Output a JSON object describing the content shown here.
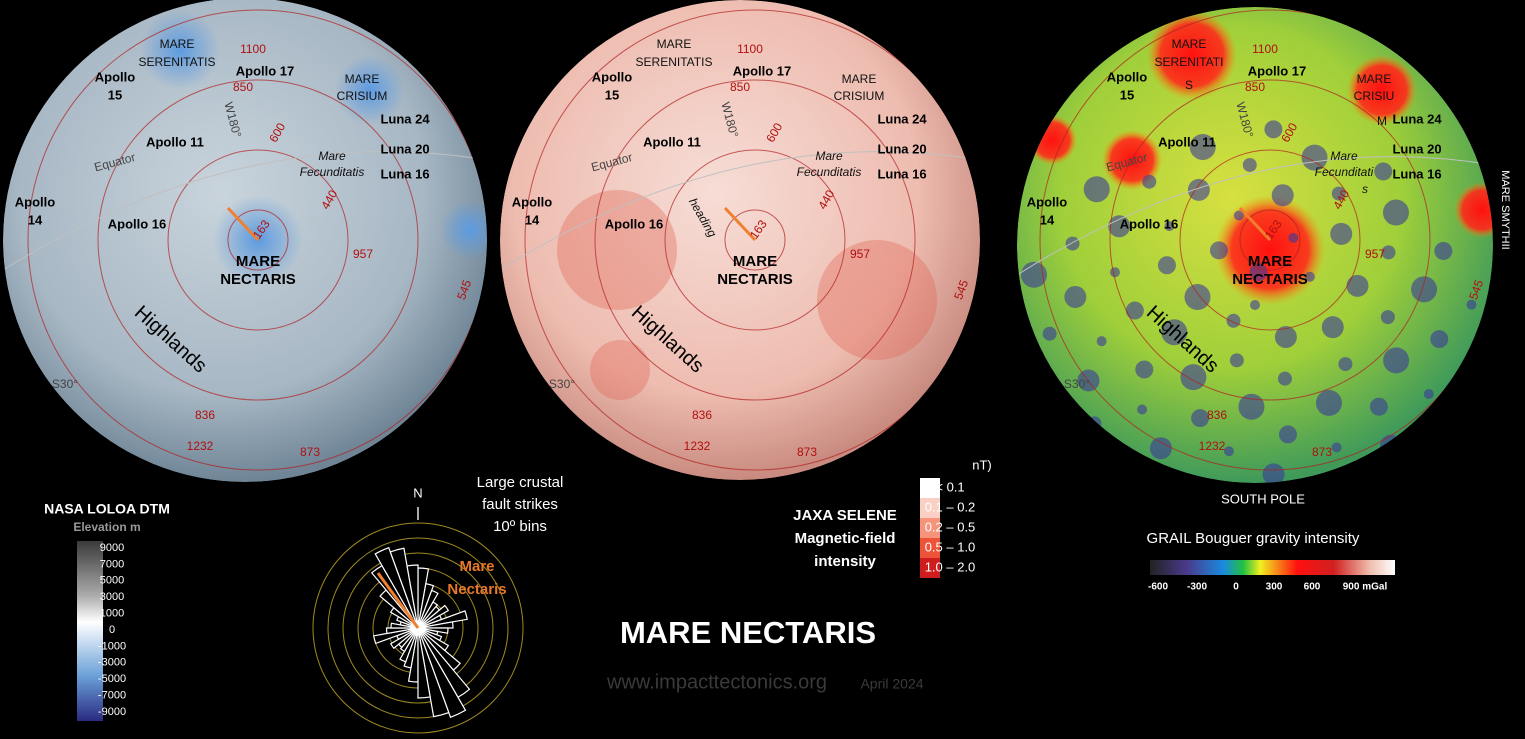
{
  "globes": [
    {
      "labels": [
        "MARE",
        "SERENITATIS",
        "Apollo  17",
        "Apollo",
        "15",
        "1100",
        "850",
        "MARE",
        "CRISIUM",
        "Luna 24",
        "W180°",
        "600",
        "Apollo 11",
        "Equator",
        "Mare",
        "Fecunditatis",
        "Luna 20",
        "Luna 16",
        "Apollo",
        "14",
        "Apollo 16",
        "163",
        "440",
        "MARE",
        "NECTARIS",
        "957",
        "545",
        "Highlands",
        "S30°",
        "836",
        "1232",
        "873"
      ],
      "extras": []
    },
    {
      "labels": [
        "MARE",
        "SERENITATIS",
        "Apollo  17",
        "Apollo",
        "15",
        "1100",
        "850",
        "MARE",
        "CRISIUM",
        "Luna 24",
        "W180°",
        "600",
        "Apollo 11",
        "Equator",
        "Mare",
        "Fecunditatis",
        "Luna 20",
        "Luna 16",
        "Apollo",
        "14",
        "Apollo 16",
        "163",
        "440",
        "MARE",
        "NECTARIS",
        "957",
        "545",
        "Highlands",
        "S30°",
        "836",
        "1232",
        "873"
      ],
      "extras": [
        "heading"
      ]
    },
    {
      "labels": [
        "MARE",
        "SERENITATI",
        "Apollo  17",
        "Apollo",
        "15",
        "1100",
        "850",
        "MARE",
        "CRISIU",
        "Luna 24",
        "W180°",
        "600",
        "Apollo 11",
        "Equator",
        "Mare",
        "Fecunditati",
        "Luna 20",
        "Luna 16",
        "Apollo",
        "14",
        "Apollo 16",
        "163",
        "440",
        "MARE",
        "NECTARIS",
        "957",
        "545",
        "Highlands",
        "S30°",
        "836",
        "1232",
        "873"
      ],
      "extras": [
        "S",
        "M",
        "s"
      ]
    }
  ],
  "side_label": "MARE SMYTHII",
  "south_pole": "SOUTH POLE",
  "elevation_legend": {
    "title": "NASA LOLOA DTM",
    "subtitle": "Elevation m",
    "labels": [
      "9000",
      "7000",
      "5000",
      "3000",
      "1000",
      "0",
      "-1000",
      "-3000",
      "-5000",
      "-7000",
      "-9000"
    ]
  },
  "rose": {
    "north": "N",
    "caption": [
      "Large crustal",
      "fault strikes",
      "10º bins"
    ],
    "marker": [
      "Mare",
      "Nectaris"
    ]
  },
  "magnetic_legend": {
    "title": [
      "JAXA SELENE",
      "Magnetic-field",
      "intensity"
    ],
    "unit": "nT)",
    "labels": [
      "< 0.1",
      "0.1 – 0.2",
      "0.2 – 0.5",
      "0.5 – 1.0",
      "1.0 – 2.0"
    ]
  },
  "gravity_legend": {
    "title": "GRAIL Bouguer gravity intensity",
    "labels": [
      "-600",
      "-300",
      "0",
      "300",
      "600",
      "900 mGal"
    ]
  },
  "title": "MARE NECTARIS",
  "footer": {
    "site": "www.impacttectonics.org",
    "date": "April 2024"
  }
}
